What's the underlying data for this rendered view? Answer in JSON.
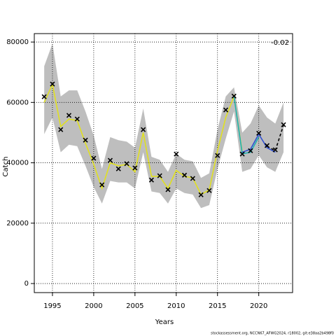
{
  "chart_data": {
    "type": "line",
    "annotation": "-0.02",
    "xlabel": "Years",
    "ylabel": "Catch",
    "footer": "stockassessment.org, NCCN67_AFWG2024, r18002, git:e38aa2b498f0",
    "xlim": [
      1992.8,
      2024.1
    ],
    "ylim": [
      -3000,
      82800
    ],
    "xticks": [
      1995,
      2000,
      2005,
      2010,
      2015,
      2020
    ],
    "yticks": [
      0,
      20000,
      40000,
      60000,
      80000
    ],
    "grid": true,
    "x": [
      1994,
      1995,
      1996,
      1997,
      1998,
      1999,
      2000,
      2001,
      2002,
      2003,
      2004,
      2005,
      2006,
      2007,
      2008,
      2009,
      2010,
      2011,
      2012,
      2013,
      2014,
      2015,
      2016,
      2017,
      2018,
      2019,
      2020,
      2021,
      2022,
      2023
    ],
    "band_color": "#bebebe",
    "band_upper": [
      72000,
      79500,
      62000,
      64000,
      64000,
      57000,
      49000,
      38000,
      48500,
      47500,
      47000,
      45000,
      58000,
      42000,
      41000,
      37000,
      43000,
      41000,
      40500,
      35000,
      36500,
      51000,
      62000,
      65000,
      50000,
      53000,
      59000,
      55000,
      53000,
      60000
    ],
    "band_lower": [
      49500,
      55000,
      43500,
      46000,
      45500,
      39000,
      32000,
      26500,
      34000,
      33500,
      33500,
      31500,
      43500,
      30500,
      30000,
      26500,
      31500,
      30000,
      29500,
      25000,
      26000,
      38000,
      48000,
      57000,
      37000,
      38000,
      42500,
      38500,
      37000,
      43500
    ],
    "observed": [
      61900,
      66100,
      51000,
      55700,
      54500,
      47500,
      41500,
      32700,
      40800,
      38000,
      39700,
      38300,
      51000,
      34300,
      35700,
      31100,
      42900,
      35900,
      34800,
      29400,
      30800,
      42400,
      57500,
      62100,
      42900,
      44000,
      49800,
      45700,
      44300,
      52600
    ],
    "series": [
      {
        "color": "#e0e020",
        "values": [
          60000,
          66000,
          52000,
          54500,
          54000,
          46500,
          39500,
          31500,
          40000,
          39000,
          39500,
          37000,
          50000,
          35500,
          35500,
          31500,
          37500,
          35500,
          35000,
          29500,
          31000,
          44000,
          55000,
          62000,
          43500,
          null,
          null,
          null,
          null,
          null
        ]
      },
      {
        "color": "#20b0b0",
        "values": [
          null,
          null,
          null,
          null,
          null,
          null,
          null,
          null,
          null,
          null,
          null,
          null,
          null,
          null,
          null,
          null,
          null,
          null,
          null,
          null,
          null,
          null,
          null,
          62000,
          43000,
          43500,
          48500,
          null,
          null,
          null
        ]
      },
      {
        "color": "#3050d0",
        "values": [
          null,
          null,
          null,
          null,
          null,
          null,
          null,
          null,
          null,
          null,
          null,
          null,
          null,
          null,
          null,
          null,
          null,
          null,
          null,
          null,
          null,
          null,
          null,
          null,
          43500,
          44500,
          49500,
          45000,
          43500,
          null
        ]
      },
      {
        "color": "#000000",
        "dashed": true,
        "values": [
          null,
          null,
          null,
          null,
          null,
          null,
          null,
          null,
          null,
          null,
          null,
          null,
          null,
          null,
          null,
          null,
          null,
          null,
          null,
          null,
          null,
          null,
          null,
          null,
          null,
          null,
          null,
          45500,
          44000,
          52500
        ]
      }
    ]
  }
}
